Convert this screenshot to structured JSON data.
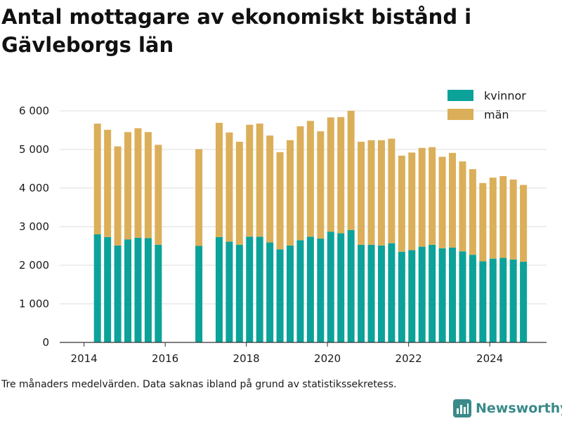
{
  "title": "Antal mottagare av ekonomiskt bistånd i Gävleborgs län",
  "note": "Tre månaders medelvärden. Data saknas ibland på grund av statistikssekretess.",
  "brand": {
    "name": "Newsworthy",
    "icon": "bar-chart-logo-icon"
  },
  "colors": {
    "kvinnor": "#0ca29a",
    "man": "#dbaf59",
    "grid": "#dddddd",
    "axis": "#333333"
  },
  "chart_data": {
    "type": "bar",
    "stacked": true,
    "x_axis": {
      "range": [
        2013.4,
        2025.4
      ],
      "ticks": [
        2014,
        2016,
        2018,
        2020,
        2022,
        2024
      ]
    },
    "y_axis": {
      "range": [
        0,
        6000
      ],
      "ticks": [
        0,
        1000,
        2000,
        3000,
        4000,
        5000,
        6000
      ],
      "tick_labels": [
        "0",
        "1 000",
        "2 000",
        "3 000",
        "4 000",
        "5 000",
        "6 000"
      ]
    },
    "grid": "horizontal",
    "legend_position": "top-right",
    "series": [
      {
        "name": "kvinnor",
        "color": "#0ca29a",
        "x": [
          2014.33,
          2014.58,
          2014.83,
          2015.08,
          2015.33,
          2015.58,
          2015.83,
          2016.83,
          2017.33,
          2017.58,
          2017.83,
          2018.08,
          2018.33,
          2018.58,
          2018.83,
          2019.08,
          2019.33,
          2019.58,
          2019.83,
          2020.08,
          2020.33,
          2020.58,
          2020.83,
          2021.08,
          2021.33,
          2021.58,
          2021.83,
          2022.08,
          2022.33,
          2022.58,
          2022.83,
          2023.08,
          2023.33,
          2023.58,
          2023.83,
          2024.08,
          2024.33,
          2024.58,
          2024.83
        ],
        "values": [
          2800,
          2730,
          2510,
          2670,
          2710,
          2700,
          2530,
          2500,
          2730,
          2610,
          2530,
          2740,
          2740,
          2590,
          2410,
          2510,
          2650,
          2740,
          2690,
          2870,
          2830,
          2910,
          2530,
          2530,
          2510,
          2570,
          2350,
          2390,
          2480,
          2530,
          2440,
          2460,
          2360,
          2270,
          2100,
          2170,
          2190,
          2150,
          2090
        ]
      },
      {
        "name": "män",
        "color": "#dbaf59",
        "x": [
          2014.33,
          2014.58,
          2014.83,
          2015.08,
          2015.33,
          2015.58,
          2015.83,
          2016.83,
          2017.33,
          2017.58,
          2017.83,
          2018.08,
          2018.33,
          2018.58,
          2018.83,
          2019.08,
          2019.33,
          2019.58,
          2019.83,
          2020.08,
          2020.33,
          2020.58,
          2020.83,
          2021.08,
          2021.33,
          2021.58,
          2021.83,
          2022.08,
          2022.33,
          2022.58,
          2022.83,
          2023.08,
          2023.33,
          2023.58,
          2023.83,
          2024.08,
          2024.33,
          2024.58,
          2024.83
        ],
        "values": [
          2870,
          2780,
          2570,
          2780,
          2840,
          2750,
          2590,
          2510,
          2960,
          2830,
          2670,
          2900,
          2930,
          2770,
          2520,
          2730,
          2950,
          3000,
          2780,
          2960,
          3010,
          3090,
          2670,
          2710,
          2730,
          2710,
          2490,
          2530,
          2560,
          2530,
          2370,
          2450,
          2330,
          2220,
          2030,
          2100,
          2120,
          2070,
          1990
        ]
      }
    ]
  }
}
